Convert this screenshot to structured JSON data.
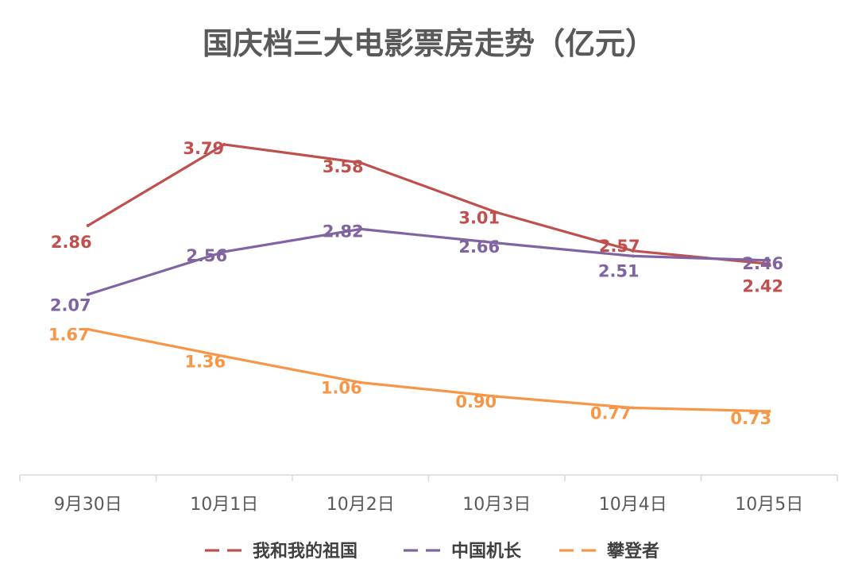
{
  "chart_data": {
    "type": "line",
    "title": "国庆档三大电影票房走势（亿元）",
    "xlabel": "",
    "ylabel": "",
    "categories": [
      "9月30日",
      "10月1日",
      "10月2日",
      "10月3日",
      "10月4日",
      "10月5日"
    ],
    "ylim": [
      0,
      4.5
    ],
    "grid": false,
    "legend_position": "bottom",
    "series": [
      {
        "name": "我和我的祖国",
        "color": "#C0504D",
        "values": [
          2.86,
          3.79,
          3.58,
          3.01,
          2.57,
          2.42
        ]
      },
      {
        "name": "中国机长",
        "color": "#8064A2",
        "values": [
          2.07,
          2.56,
          2.82,
          2.66,
          2.51,
          2.46
        ]
      },
      {
        "name": "攀登者",
        "color": "#F79646",
        "values": [
          1.67,
          1.36,
          1.06,
          0.9,
          0.77,
          0.73
        ]
      }
    ]
  }
}
